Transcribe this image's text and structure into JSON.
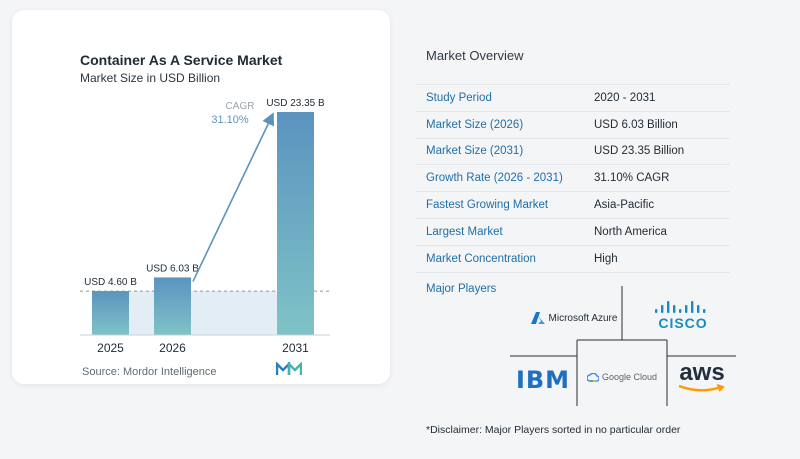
{
  "chart": {
    "title": "Container As A Service Market",
    "subtitle": "Market Size in USD Billion",
    "source": "Source:  Mordor Intelligence",
    "cagr_label": "CAGR",
    "cagr_value": "31.10%"
  },
  "chart_data": {
    "type": "bar",
    "title": "Container As A Service Market",
    "subtitle": "Market Size in USD Billion",
    "categories": [
      "2025",
      "2026",
      "2031"
    ],
    "values": [
      4.6,
      6.03,
      23.35
    ],
    "data_labels": [
      "USD 4.60 B",
      "USD 6.03 B",
      "USD 23.35 B"
    ],
    "ylim": [
      0,
      23.35
    ],
    "grid": false,
    "annotation": {
      "label": "CAGR",
      "value": "31.10%"
    },
    "colors": {
      "bar_top": "#5b93bf",
      "bar_bottom": "#7fc3c7",
      "arrow": "#5d93ba",
      "band": "#e3edf5"
    }
  },
  "overview": {
    "title": "Market Overview",
    "rows": [
      {
        "key": "Study Period",
        "value": "2020 - 2031"
      },
      {
        "key": "Market Size (2026)",
        "value": "USD 6.03 Billion"
      },
      {
        "key": "Market Size (2031)",
        "value": "USD 23.35 Billion"
      },
      {
        "key": "Growth Rate (2026 - 2031)",
        "value": "31.10% CAGR"
      },
      {
        "key": "Fastest Growing Market",
        "value": "Asia-Pacific"
      },
      {
        "key": "Largest Market",
        "value": "North America"
      },
      {
        "key": "Market Concentration",
        "value": "High"
      }
    ],
    "players_title": "Major Players",
    "players": [
      "Microsoft Azure",
      "cisco",
      "IBM",
      "Google Cloud",
      "aws"
    ],
    "disclaimer": "*Disclaimer: Major Players sorted in no particular order"
  },
  "colors": {
    "accent": "#1f6fa8",
    "card": "#ffffff",
    "page": "#f4f5f7"
  }
}
